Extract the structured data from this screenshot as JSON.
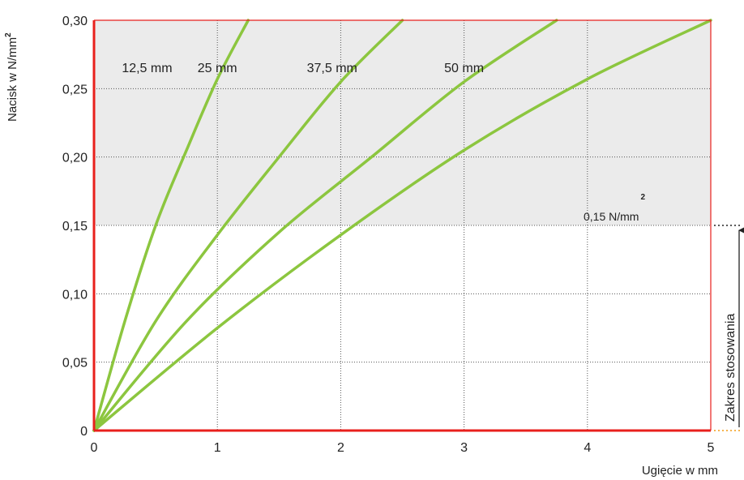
{
  "chart_data": {
    "type": "line",
    "xlabel": "Ugięcie w mm",
    "ylabel": "Nacisk w N/mm",
    "ylabel_sup": "2",
    "xlim": [
      0,
      5
    ],
    "ylim": [
      0,
      0.3
    ],
    "x_ticks": [
      "0",
      "1",
      "2",
      "3",
      "4",
      "5"
    ],
    "y_ticks": [
      "0",
      "0,05",
      "0,10",
      "0,15",
      "0,20",
      "0,25",
      "0,30"
    ],
    "grid": true,
    "series": [
      {
        "name": "12,5 mm",
        "x": [
          0,
          0.25,
          0.5,
          0.75,
          1.0,
          1.25
        ],
        "y": [
          0,
          0.08,
          0.15,
          0.205,
          0.257,
          0.3
        ]
      },
      {
        "name": "25 mm",
        "x": [
          0,
          0.5,
          1.0,
          1.5,
          2.0,
          2.5
        ],
        "y": [
          0,
          0.08,
          0.143,
          0.2,
          0.255,
          0.3
        ]
      },
      {
        "name": "37,5 mm",
        "x": [
          0,
          0.75,
          1.5,
          2.25,
          3.0,
          3.75
        ],
        "y": [
          0,
          0.08,
          0.145,
          0.2,
          0.255,
          0.3
        ]
      },
      {
        "name": "50 mm",
        "x": [
          0,
          1.0,
          2.0,
          3.0,
          4.0,
          5.0
        ],
        "y": [
          0,
          0.075,
          0.143,
          0.205,
          0.257,
          0.3
        ]
      }
    ],
    "annotations": {
      "threshold_label": "0,15 N/mm",
      "threshold_sup": "2",
      "threshold_value": 0.15,
      "range_label": "Zakres stosowania"
    },
    "colors": {
      "curve": "#8cc63f",
      "axis": "#e8201c",
      "shaded": "#ebebeb",
      "grid": "#555555"
    }
  }
}
